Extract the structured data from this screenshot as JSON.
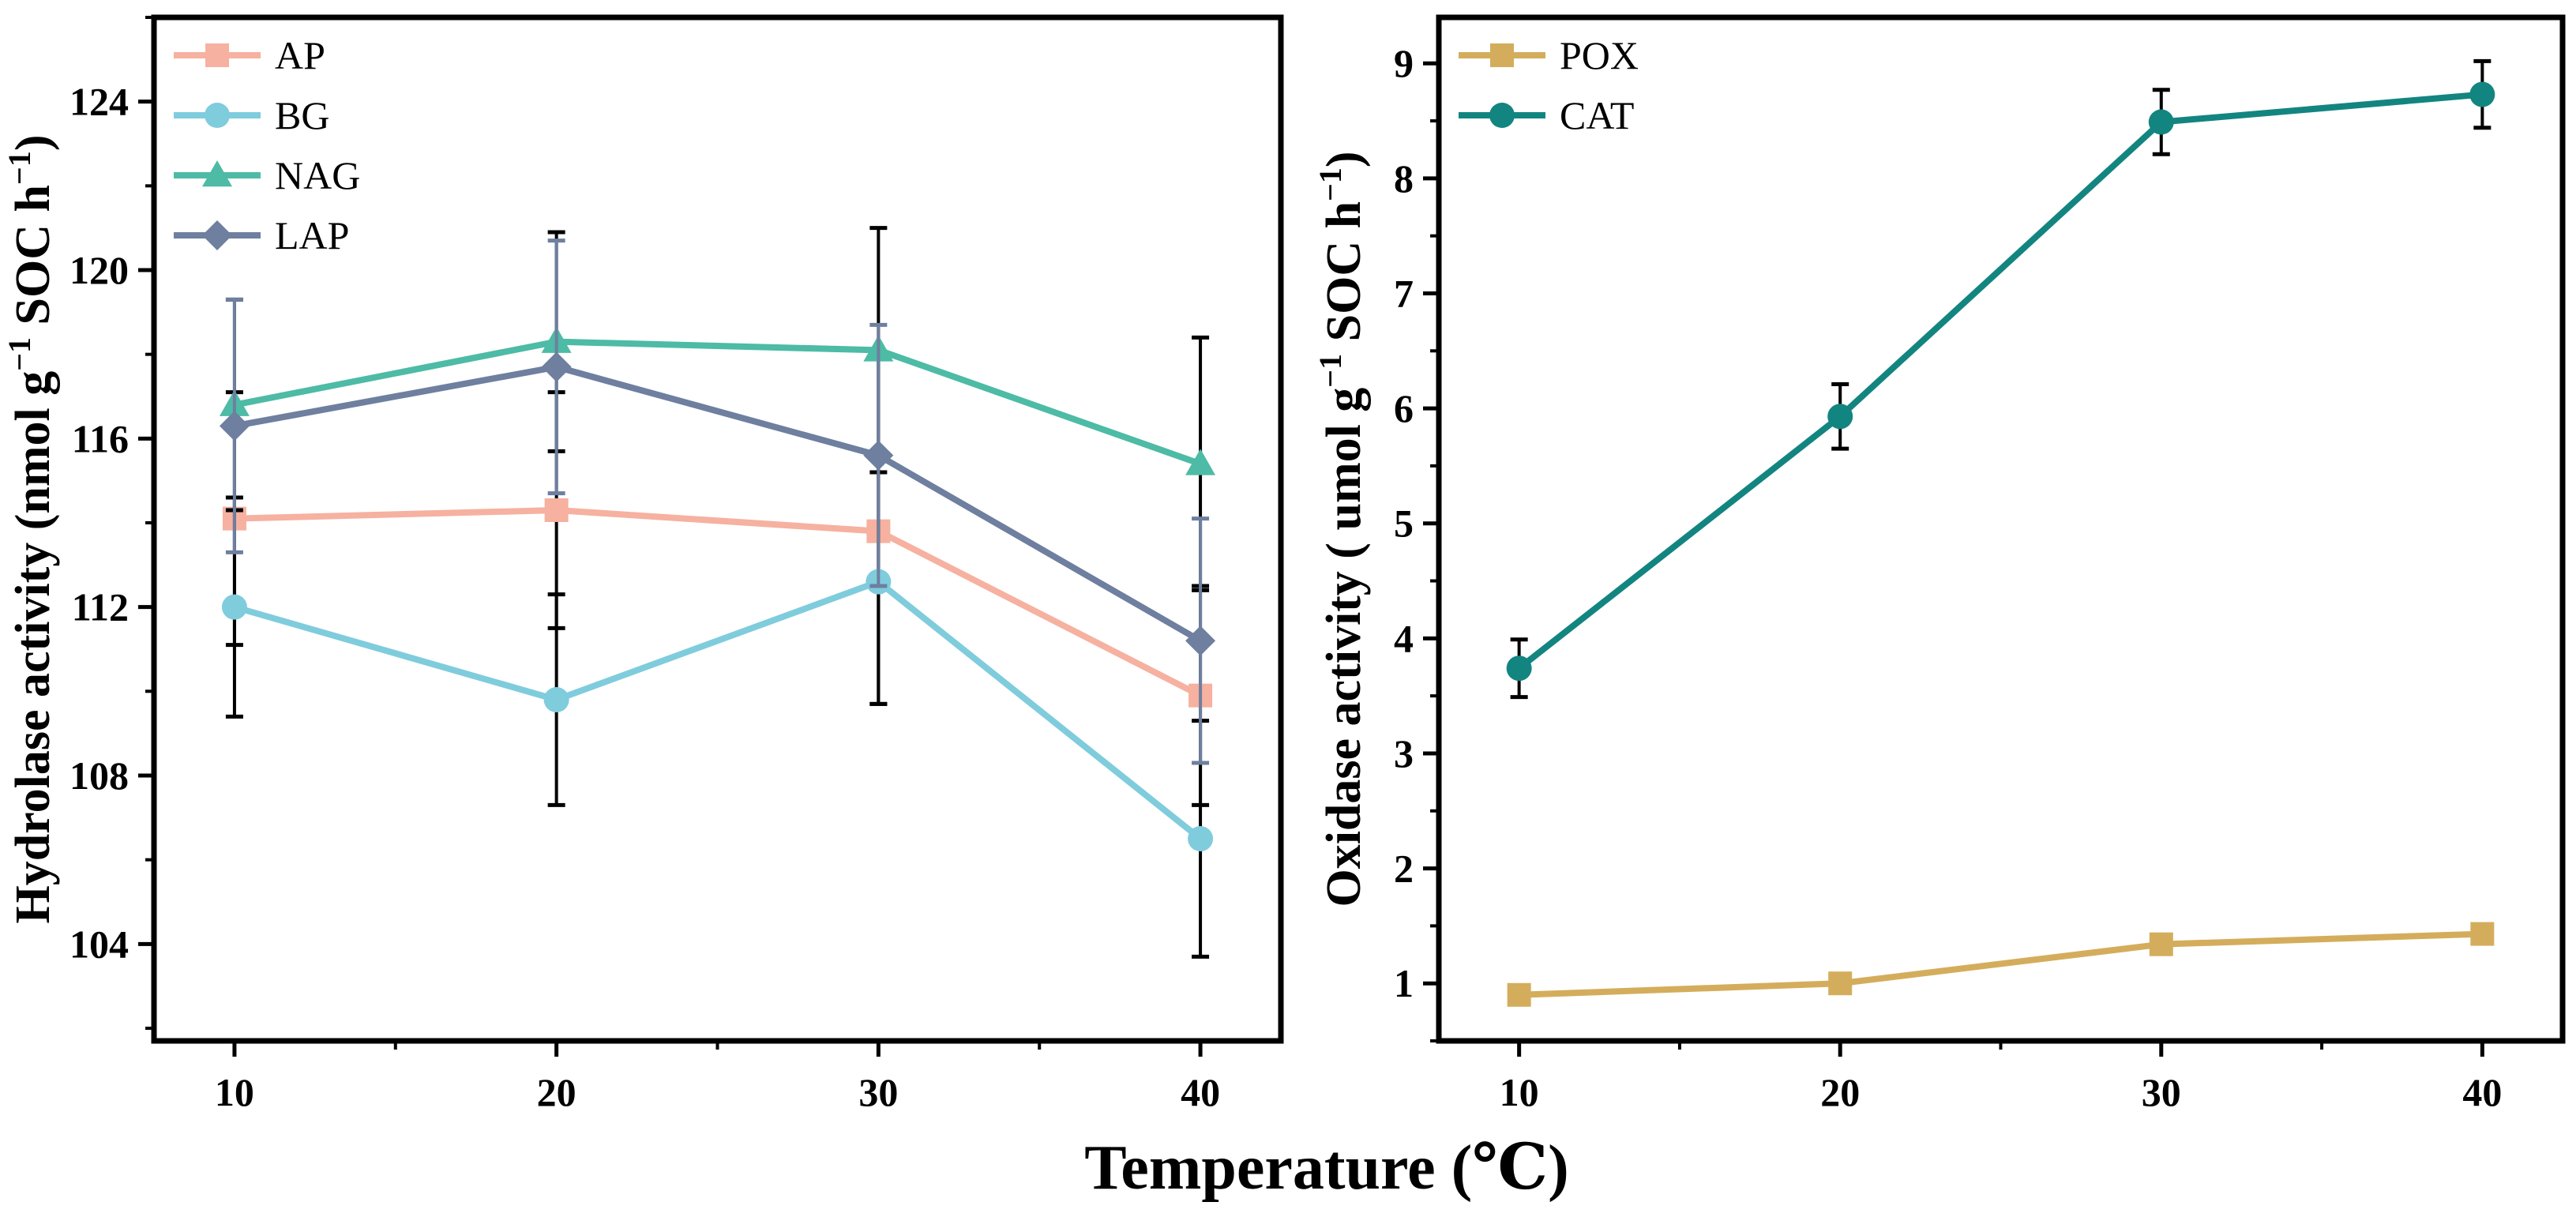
{
  "figure": {
    "shared_xlabel": "Temperature (℃)"
  },
  "chart_data": [
    {
      "type": "line",
      "panel": "left",
      "title": "",
      "xlabel": "",
      "ylabel": "Hydrolase activity (nmol g⁻¹ SOC h⁻¹)",
      "x": [
        10,
        20,
        30,
        40
      ],
      "xlim": [
        7.5,
        42.5
      ],
      "ylim": [
        101.7,
        126.0
      ],
      "xticks": [
        10,
        20,
        30,
        40
      ],
      "yticks": [
        104,
        108,
        112,
        116,
        120,
        124
      ],
      "grid": false,
      "legend_position": "top-left",
      "series": [
        {
          "name": "AP",
          "color": "#F6B1A0",
          "marker": "square",
          "values": [
            114.1,
            114.3,
            113.8,
            109.9
          ],
          "errors": [
            3.0,
            2.8,
            4.1,
            2.6
          ]
        },
        {
          "name": "BG",
          "color": "#7FCCDD",
          "marker": "circle",
          "values": [
            112.0,
            109.8,
            112.6,
            106.5
          ],
          "errors": [
            2.6,
            2.5,
            2.9,
            2.8
          ]
        },
        {
          "name": "NAG",
          "color": "#4DBBA5",
          "marker": "triangle",
          "values": [
            116.8,
            118.3,
            118.1,
            115.4
          ],
          "errors": [
            2.5,
            2.6,
            2.9,
            3.0
          ]
        },
        {
          "name": "LAP",
          "color": "#6E7F9F",
          "marker": "diamond",
          "values": [
            116.3,
            117.7,
            115.6,
            111.2
          ],
          "errors": [
            3.0,
            3.0,
            3.1,
            2.9
          ]
        }
      ]
    },
    {
      "type": "line",
      "panel": "right",
      "title": "",
      "xlabel": "",
      "ylabel": "Oxidase activity ( umol g⁻¹ SOC h⁻¹)",
      "x": [
        10,
        20,
        30,
        40
      ],
      "xlim": [
        7.5,
        42.5
      ],
      "ylim": [
        0.5,
        9.4
      ],
      "xticks": [
        10,
        20,
        30,
        40
      ],
      "yticks": [
        1,
        2,
        3,
        4,
        5,
        6,
        7,
        8,
        9
      ],
      "grid": false,
      "legend_position": "top-left",
      "series": [
        {
          "name": "POX",
          "color": "#D4AD5C",
          "marker": "square",
          "values": [
            0.9,
            1.0,
            1.34,
            1.43
          ],
          "errors": [
            0.06,
            0.06,
            0.08,
            0.07
          ]
        },
        {
          "name": "CAT",
          "color": "#138580",
          "marker": "circle",
          "values": [
            3.74,
            5.93,
            8.49,
            8.73
          ],
          "errors": [
            0.25,
            0.28,
            0.28,
            0.29
          ]
        }
      ]
    }
  ]
}
